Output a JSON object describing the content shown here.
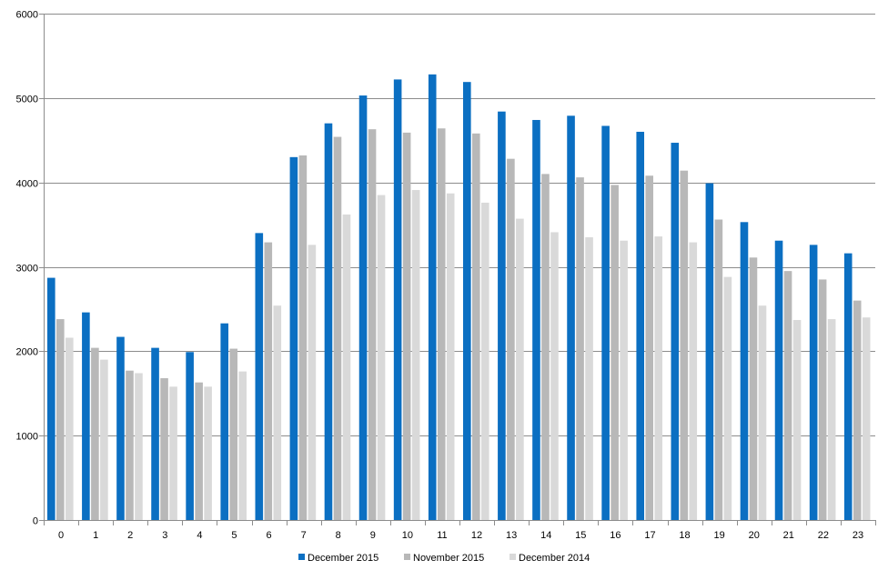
{
  "chart_data": {
    "type": "bar",
    "categories": [
      "0",
      "1",
      "2",
      "3",
      "4",
      "5",
      "6",
      "7",
      "8",
      "9",
      "10",
      "11",
      "12",
      "13",
      "14",
      "15",
      "16",
      "17",
      "18",
      "19",
      "20",
      "21",
      "22",
      "23"
    ],
    "series": [
      {
        "name": "December 2015",
        "color": "#0b6fc2",
        "values": [
          2870,
          2460,
          2170,
          2040,
          1990,
          2330,
          3400,
          4300,
          4700,
          5030,
          5220,
          5280,
          5190,
          4840,
          4740,
          4790,
          4670,
          4600,
          4470,
          3990,
          3530,
          3310,
          3260,
          3160
        ]
      },
      {
        "name": "November 2015",
        "color": "#b8b8b8",
        "values": [
          2380,
          2040,
          1770,
          1680,
          1630,
          2030,
          3290,
          4320,
          4540,
          4630,
          4590,
          4640,
          4580,
          4280,
          4100,
          4060,
          3970,
          4080,
          4140,
          3560,
          3110,
          2950,
          2850,
          2600
        ]
      },
      {
        "name": "December 2014",
        "color": "#d9d9d9",
        "values": [
          2160,
          1900,
          1740,
          1580,
          1580,
          1760,
          2540,
          3260,
          3620,
          3850,
          3910,
          3870,
          3760,
          3570,
          3410,
          3350,
          3310,
          3360,
          3290,
          2880,
          2540,
          2370,
          2380,
          2400
        ]
      }
    ],
    "ylim": [
      0,
      6000
    ],
    "yticks": [
      "0",
      "1000",
      "2000",
      "3000",
      "4000",
      "5000",
      "6000"
    ],
    "grid": true,
    "legend_position": "bottom",
    "title": "",
    "xlabel": "",
    "ylabel": ""
  }
}
